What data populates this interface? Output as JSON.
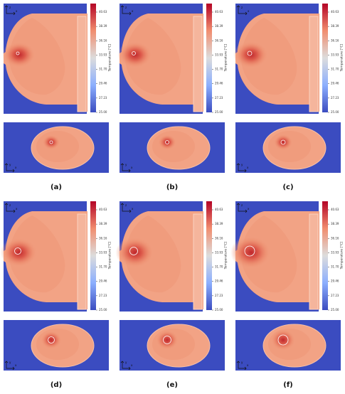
{
  "panels": [
    {
      "label": "(a)"
    },
    {
      "label": "(b)"
    },
    {
      "label": "(c)"
    },
    {
      "label": "(d)"
    },
    {
      "label": "(e)"
    },
    {
      "label": "(f)"
    }
  ],
  "colorbar": {
    "label": "Temperature [°C]",
    "ticks": [
      "40.63",
      "38.39",
      "36.16",
      "33.93",
      "31.70",
      "29.46",
      "27.23",
      "25.00"
    ]
  },
  "axes": {
    "side_up": "z",
    "side_right": "x",
    "top_up": "y",
    "top_right": "x"
  }
}
